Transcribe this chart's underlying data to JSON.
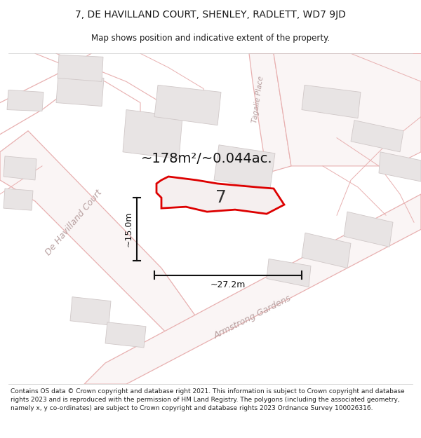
{
  "title": "7, DE HAVILLAND COURT, SHENLEY, RADLETT, WD7 9JD",
  "subtitle": "Map shows position and indicative extent of the property.",
  "area_text": "~178m²/~0.044ac.",
  "label_number": "7",
  "dim_width_label": "~27.2m",
  "dim_height_label": "~15.0m",
  "footer": "Contains OS data © Crown copyright and database right 2021. This information is subject to Crown copyright and database rights 2023 and is reproduced with the permission of HM Land Registry. The polygons (including the associated geometry, namely x, y co-ordinates) are subject to Crown copyright and database rights 2023 Ordnance Survey 100026316.",
  "bg_color": "#ffffff",
  "map_bg": "#f9f6f6",
  "road_outline_color": "#e8b0b0",
  "building_fill": "#e8e4e4",
  "building_edge": "#d0c8c8",
  "plot_color": "#dd0000",
  "plot_fill": "#f5efef",
  "dim_color": "#111111",
  "road_label_color": "#b8a0a0",
  "title_fontsize": 10,
  "subtitle_fontsize": 8.5,
  "area_fontsize": 14,
  "label_fontsize": 18,
  "dim_fontsize": 9,
  "road_fontsize": 9,
  "footer_fontsize": 6.5,
  "figsize": [
    6.0,
    6.25
  ],
  "dpi": 100
}
